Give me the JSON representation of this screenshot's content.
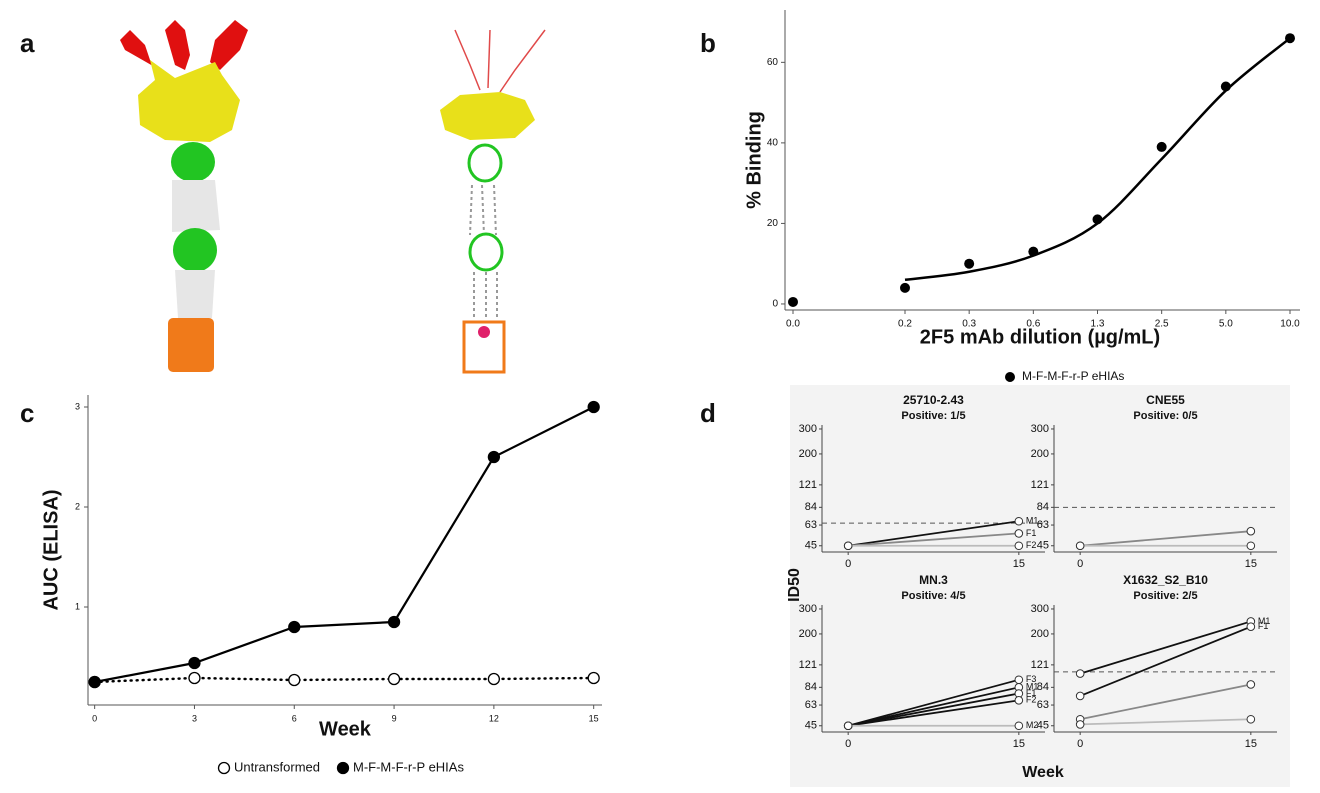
{
  "image_panel": {
    "panel": "a"
  },
  "chart_data": [
    {
      "type": "scatter",
      "panel": "b",
      "y_label": "% Binding",
      "x_label": "2F5 mAb dilution (µg/mL)",
      "categories": [
        "0.0",
        "0.2",
        "0.3",
        "0.6",
        "1.3",
        "2.5",
        "5.0",
        "10.0"
      ],
      "series": [
        {
          "name": "M-F-M-F-r-P eHIAs",
          "color": "#000000",
          "values": [
            0.5,
            4,
            10,
            13,
            21,
            39,
            54,
            66
          ]
        }
      ],
      "fit": [
        null,
        6,
        8,
        12,
        20,
        36,
        53,
        66
      ],
      "ylim": [
        -1.5,
        73
      ],
      "yticks": [
        0,
        20,
        40,
        60
      ]
    },
    {
      "type": "line",
      "panel": "c",
      "y_label": "AUC (ELISA)",
      "x_label": "Week",
      "x": [
        0,
        3,
        6,
        9,
        12,
        15
      ],
      "xlim": [
        -0.2,
        15.25
      ],
      "xticks": [
        0,
        3,
        6,
        9,
        12,
        15
      ],
      "ylim": [
        0.02,
        3.12
      ],
      "yticks": [
        1,
        2,
        3
      ],
      "legend": "bottom",
      "series": [
        {
          "name": "Untransformed",
          "color": "#000000",
          "style": "dotted",
          "marker": "open",
          "values": [
            0.25,
            0.29,
            0.27,
            0.28,
            0.28,
            0.29
          ]
        },
        {
          "name": "M-F-M-F-r-P eHIAs",
          "color": "#000000",
          "style": "solid",
          "marker": "filled",
          "values": [
            0.25,
            0.44,
            0.8,
            0.85,
            2.5,
            3.0
          ]
        }
      ]
    },
    {
      "type": "small-multiples",
      "panel": "d",
      "y_label": "ID50",
      "x_label": "Week",
      "log_y": true,
      "x": [
        0,
        15
      ],
      "xlim": [
        -2.3,
        17.3
      ],
      "xticks": [
        0,
        15
      ],
      "ylim": [
        42,
        320
      ],
      "yticks": [
        45,
        63,
        84,
        121,
        200,
        300
      ],
      "panels": [
        {
          "title": "25710-2.43",
          "subtitle": "Positive: 1/5",
          "threshold": 65,
          "series": [
            {
              "name": "M1",
              "color": "#111111",
              "values": [
                45,
                67
              ]
            },
            {
              "name": "F1",
              "color": "#888888",
              "values": [
                45,
                55
              ]
            },
            {
              "name": "F2",
              "color": "#bbbbbb",
              "values": [
                45,
                45
              ]
            }
          ]
        },
        {
          "title": "CNE55",
          "subtitle": "Positive: 0/5",
          "threshold": 84,
          "series": [
            {
              "name": null,
              "color": "#888888",
              "values": [
                45,
                57
              ]
            },
            {
              "name": null,
              "color": "#bbbbbb",
              "values": [
                45,
                45
              ]
            }
          ]
        },
        {
          "title": "MN.3",
          "subtitle": "Positive: 4/5",
          "series": [
            {
              "name": "F3",
              "color": "#111111",
              "values": [
                45,
                95
              ]
            },
            {
              "name": "M1",
              "color": "#111111",
              "values": [
                45,
                84
              ]
            },
            {
              "name": "F1",
              "color": "#111111",
              "values": [
                45,
                76
              ]
            },
            {
              "name": "F2",
              "color": "#111111",
              "values": [
                45,
                68
              ]
            },
            {
              "name": "M2",
              "color": "#bbbbbb",
              "values": [
                45,
                45
              ]
            }
          ]
        },
        {
          "title": "X1632_S2_B10",
          "subtitle": "Positive: 2/5",
          "threshold": 108,
          "series": [
            {
              "name": "M1",
              "color": "#111111",
              "values": [
                105,
                245
              ]
            },
            {
              "name": "F1",
              "color": "#111111",
              "values": [
                73,
                225
              ]
            },
            {
              "name": null,
              "color": "#888888",
              "values": [
                50,
                88
              ]
            },
            {
              "name": null,
              "color": "#bbbbbb",
              "values": [
                46,
                50
              ]
            }
          ]
        }
      ]
    }
  ]
}
